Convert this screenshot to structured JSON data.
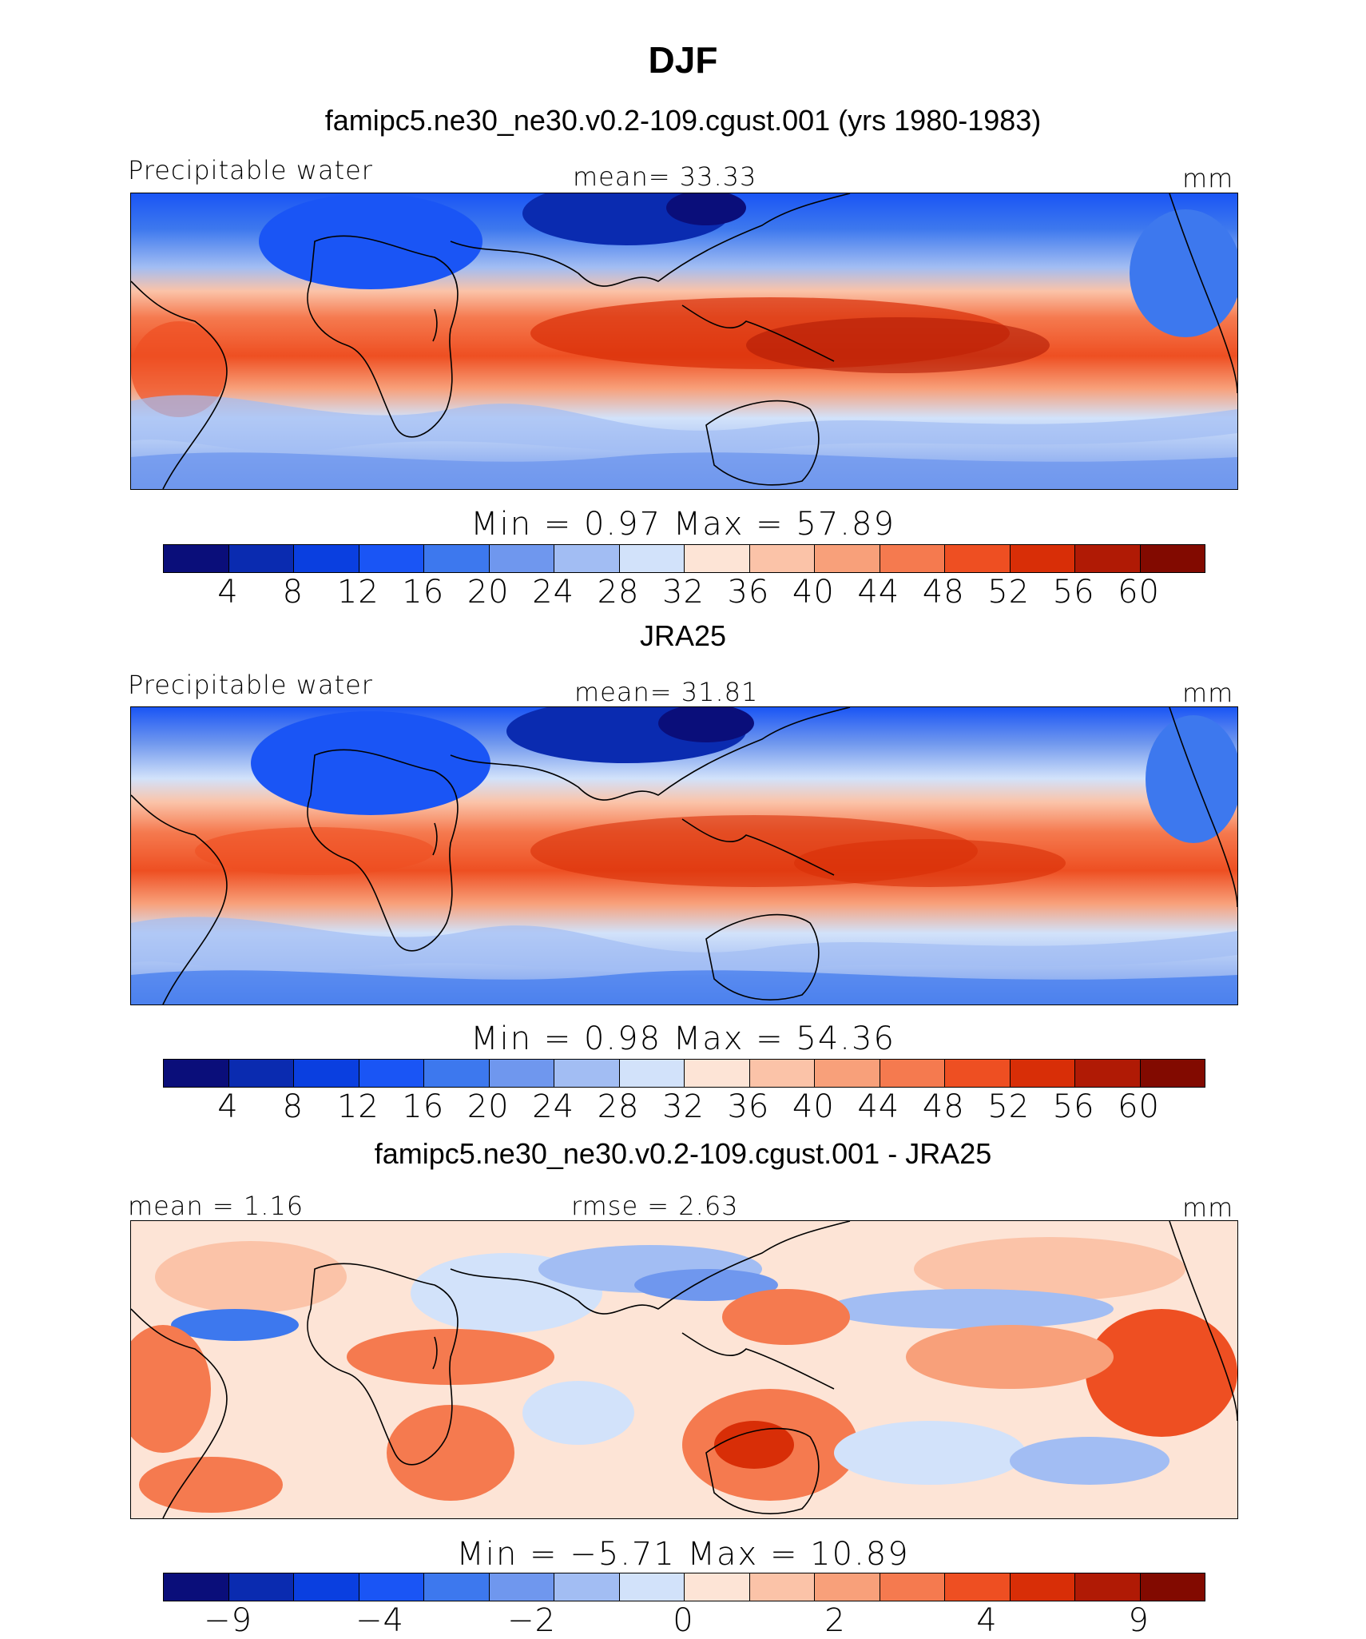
{
  "title": "DJF",
  "palette": [
    "#0a0e7a",
    "#0a2bb0",
    "#0a3fe0",
    "#1a55f5",
    "#3d78ee",
    "#6f97ee",
    "#a2bdf3",
    "#d2e2fa",
    "#fde4d6",
    "#fbc3a8",
    "#f8a07a",
    "#f57a4f",
    "#ee4f22",
    "#d82e07",
    "#b01a05",
    "#820a00"
  ],
  "panels": [
    {
      "heading": "famipc5.ne30_ne30.v0.2-109.cgust.001 (yrs 1980-1983)",
      "left_label": "Precipitable water",
      "center_label": "mean=   33.33",
      "units": "mm",
      "min_max": "Min =     0.97  Max =   57.89",
      "ticks": [
        "4",
        "8",
        "12",
        "16",
        "20",
        "24",
        "28",
        "32",
        "36",
        "40",
        "44",
        "48",
        "52",
        "56",
        "60"
      ]
    },
    {
      "heading": "JRA25",
      "left_label": "Precipitable water",
      "center_label": "mean=   31.81",
      "units": "mm",
      "min_max": "Min =     0.98  Max =   54.36",
      "ticks": [
        "4",
        "8",
        "12",
        "16",
        "20",
        "24",
        "28",
        "32",
        "36",
        "40",
        "44",
        "48",
        "52",
        "56",
        "60"
      ]
    },
    {
      "heading": "famipc5.ne30_ne30.v0.2-109.cgust.001 - JRA25",
      "left_label": "mean =    1.16",
      "center_label": "rmse =    2.63",
      "units": "mm",
      "min_max": "Min =   −5.71  Max =   10.89",
      "ticks": [
        "−9",
        "−4",
        "−2",
        "0",
        "2",
        "4",
        "9"
      ]
    }
  ]
}
